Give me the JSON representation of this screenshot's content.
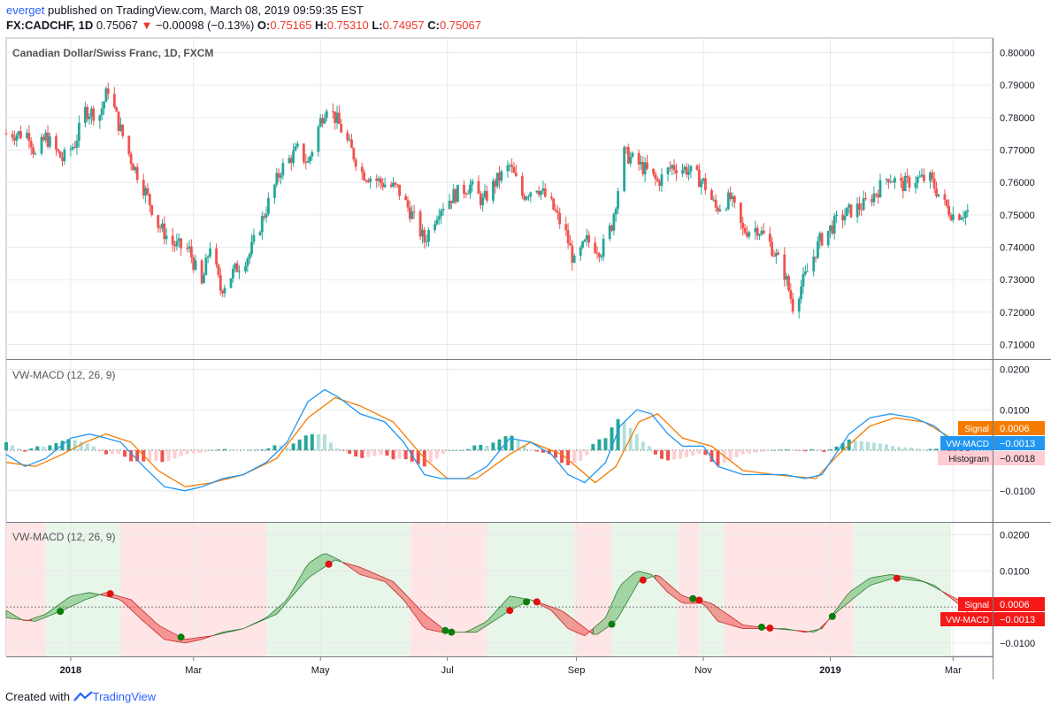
{
  "header": {
    "user": "everget",
    "published": "published on TradingView.com, March 08, 2019 09:59:35 EST",
    "symbol": "FX:CADCHF, 1D",
    "last": "0.75067",
    "change": "−0.00098 (−0.13%)",
    "o_label": "O:",
    "o": "0.75165",
    "h_label": "H:",
    "h": "0.75310",
    "l_label": "L:",
    "l": "0.74957",
    "c_label": "C:",
    "c": "0.75067"
  },
  "footer": {
    "created": "Created with",
    "brand": "TradingView"
  },
  "colors": {
    "up": "#26a69a",
    "down": "#ef5350",
    "macd": "#2196f3",
    "signal": "#f57c00",
    "hist_pos": "#26a69a",
    "hist_pos_fade": "#b2dfdb",
    "hist_neg": "#ef5350",
    "hist_neg_fade": "#ffcdd2",
    "bg_green": "#e8f5e9",
    "bg_red": "#ffe5e5",
    "grid": "#e6eaed",
    "axis": "#787b86"
  },
  "chart_data": [
    {
      "type": "candlestick",
      "title": "Canadian Dollar/Swiss Franc, 1D, FXCM",
      "yticks": [
        "0.80000",
        "0.79000",
        "0.78000",
        "0.77000",
        "0.76000",
        "0.75000",
        "0.74000",
        "0.73000",
        "0.72000",
        "0.71000"
      ],
      "ylim": [
        0.7055,
        0.8045
      ],
      "xticks": [
        "2018",
        "Mar",
        "May",
        "Jul",
        "Sep",
        "Nov",
        "2019",
        "Mar"
      ],
      "close_path": [
        [
          "2017-12-12",
          0.775
        ],
        [
          "2017-12-15",
          0.768
        ],
        [
          "2017-12-20",
          0.774
        ],
        [
          "2017-12-28",
          0.767
        ],
        [
          "2018-01-03",
          0.772
        ],
        [
          "2018-01-08",
          0.782
        ],
        [
          "2018-01-15",
          0.781
        ],
        [
          "2018-01-19",
          0.789
        ],
        [
          "2018-01-24",
          0.778
        ],
        [
          "2018-01-30",
          0.767
        ],
        [
          "2018-02-06",
          0.757
        ],
        [
          "2018-02-12",
          0.747
        ],
        [
          "2018-02-19",
          0.741
        ],
        [
          "2018-02-27",
          0.739
        ],
        [
          "2018-03-05",
          0.728
        ],
        [
          "2018-03-09",
          0.741
        ],
        [
          "2018-03-14",
          0.727
        ],
        [
          "2018-03-21",
          0.733
        ],
        [
          "2018-03-28",
          0.738
        ],
        [
          "2018-04-05",
          0.752
        ],
        [
          "2018-04-12",
          0.764
        ],
        [
          "2018-04-20",
          0.77
        ],
        [
          "2018-04-25",
          0.766
        ],
        [
          "2018-05-01",
          0.779
        ],
        [
          "2018-05-04",
          0.784
        ],
        [
          "2018-05-09",
          0.779
        ],
        [
          "2018-05-15",
          0.771
        ],
        [
          "2018-05-21",
          0.763
        ],
        [
          "2018-05-30",
          0.76
        ],
        [
          "2018-06-07",
          0.758
        ],
        [
          "2018-06-14",
          0.75
        ],
        [
          "2018-06-20",
          0.742
        ],
        [
          "2018-06-27",
          0.752
        ],
        [
          "2018-07-04",
          0.756
        ],
        [
          "2018-07-12",
          0.759
        ],
        [
          "2018-07-18",
          0.754
        ],
        [
          "2018-07-24",
          0.76
        ],
        [
          "2018-07-31",
          0.765
        ],
        [
          "2018-08-06",
          0.756
        ],
        [
          "2018-08-13",
          0.759
        ],
        [
          "2018-08-20",
          0.753
        ],
        [
          "2018-08-27",
          0.744
        ],
        [
          "2018-08-31",
          0.735
        ],
        [
          "2018-09-06",
          0.742
        ],
        [
          "2018-09-13",
          0.739
        ],
        [
          "2018-09-18",
          0.747
        ],
        [
          "2018-09-24",
          0.769
        ],
        [
          "2018-09-30",
          0.766
        ],
        [
          "2018-10-04",
          0.764
        ],
        [
          "2018-10-10",
          0.76
        ],
        [
          "2018-10-17",
          0.765
        ],
        [
          "2018-10-24",
          0.764
        ],
        [
          "2018-11-01",
          0.76
        ],
        [
          "2018-11-07",
          0.752
        ],
        [
          "2018-11-14",
          0.755
        ],
        [
          "2018-11-20",
          0.745
        ],
        [
          "2018-11-27",
          0.746
        ],
        [
          "2018-12-03",
          0.741
        ],
        [
          "2018-12-10",
          0.732
        ],
        [
          "2018-12-14",
          0.722
        ],
        [
          "2018-12-20",
          0.731
        ],
        [
          "2018-12-27",
          0.742
        ],
        [
          "2019-01-04",
          0.748
        ],
        [
          "2019-01-10",
          0.751
        ],
        [
          "2019-01-17",
          0.753
        ],
        [
          "2019-01-23",
          0.757
        ],
        [
          "2019-01-29",
          0.762
        ],
        [
          "2019-02-04",
          0.759
        ],
        [
          "2019-02-11",
          0.761
        ],
        [
          "2019-02-18",
          0.761
        ],
        [
          "2019-02-25",
          0.753
        ],
        [
          "2019-03-01",
          0.75
        ],
        [
          "2019-03-08",
          0.751
        ]
      ]
    },
    {
      "type": "line+histogram",
      "title": "VW-MACD (12, 26, 9)",
      "yticks": [
        "0.0200",
        "0.0100",
        "-0.0100"
      ],
      "ylim": [
        -0.0177,
        0.0223
      ],
      "labels": {
        "signal": "Signal",
        "signal_value": "0.0006",
        "macd": "VW-MACD",
        "macd_value": "−0.0013",
        "hist": "Histogram",
        "hist_value": "−0.0018"
      },
      "macd": [
        [
          "2017-12-01",
          -0.001
        ],
        [
          "2017-12-10",
          -0.004
        ],
        [
          "2017-12-20",
          -0.002
        ],
        [
          "2018-01-01",
          0.003
        ],
        [
          "2018-01-10",
          0.004
        ],
        [
          "2018-01-18",
          0.003
        ],
        [
          "2018-01-25",
          0.002
        ],
        [
          "2018-02-05",
          -0.004
        ],
        [
          "2018-02-15",
          -0.009
        ],
        [
          "2018-02-25",
          -0.01
        ],
        [
          "2018-03-05",
          -0.009
        ],
        [
          "2018-03-15",
          -0.007
        ],
        [
          "2018-03-25",
          -0.006
        ],
        [
          "2018-04-05",
          -0.003
        ],
        [
          "2018-04-15",
          0.002
        ],
        [
          "2018-04-25",
          0.012
        ],
        [
          "2018-05-03",
          0.015
        ],
        [
          "2018-05-10",
          0.013
        ],
        [
          "2018-05-20",
          0.009
        ],
        [
          "2018-06-01",
          0.007
        ],
        [
          "2018-06-10",
          0.002
        ],
        [
          "2018-06-20",
          -0.006
        ],
        [
          "2018-06-28",
          -0.007
        ],
        [
          "2018-07-10",
          -0.007
        ],
        [
          "2018-07-20",
          -0.004
        ],
        [
          "2018-07-31",
          0.003
        ],
        [
          "2018-08-10",
          0.002
        ],
        [
          "2018-08-20",
          -0.001
        ],
        [
          "2018-08-28",
          -0.006
        ],
        [
          "2018-09-05",
          -0.008
        ],
        [
          "2018-09-15",
          -0.003
        ],
        [
          "2018-09-22",
          0.006
        ],
        [
          "2018-09-30",
          0.01
        ],
        [
          "2018-10-07",
          0.009
        ],
        [
          "2018-10-15",
          0.004
        ],
        [
          "2018-10-22",
          0.001
        ],
        [
          "2018-11-01",
          0.001
        ],
        [
          "2018-11-08",
          -0.004
        ],
        [
          "2018-11-20",
          -0.006
        ],
        [
          "2018-12-01",
          -0.006
        ],
        [
          "2018-12-10",
          -0.006
        ],
        [
          "2018-12-20",
          -0.007
        ],
        [
          "2018-12-28",
          -0.006
        ],
        [
          "2019-01-10",
          0.004
        ],
        [
          "2019-01-20",
          0.008
        ],
        [
          "2019-01-30",
          0.009
        ],
        [
          "2019-02-10",
          0.008
        ],
        [
          "2019-02-20",
          0.006
        ],
        [
          "2019-03-01",
          0.002
        ],
        [
          "2019-03-08",
          -0.0013
        ]
      ],
      "signal": [
        [
          "2017-12-01",
          -0.003
        ],
        [
          "2017-12-15",
          -0.004
        ],
        [
          "2017-12-28",
          -0.001
        ],
        [
          "2018-01-08",
          0.002
        ],
        [
          "2018-01-18",
          0.004
        ],
        [
          "2018-01-30",
          0.002
        ],
        [
          "2018-02-12",
          -0.005
        ],
        [
          "2018-02-25",
          -0.009
        ],
        [
          "2018-03-10",
          -0.008
        ],
        [
          "2018-03-25",
          -0.006
        ],
        [
          "2018-04-10",
          -0.002
        ],
        [
          "2018-04-25",
          0.008
        ],
        [
          "2018-05-08",
          0.013
        ],
        [
          "2018-05-20",
          0.011
        ],
        [
          "2018-06-05",
          0.007
        ],
        [
          "2018-06-20",
          -0.002
        ],
        [
          "2018-07-01",
          -0.007
        ],
        [
          "2018-07-15",
          -0.007
        ],
        [
          "2018-07-31",
          -0.001
        ],
        [
          "2018-08-10",
          0.002
        ],
        [
          "2018-08-25",
          -0.001
        ],
        [
          "2018-09-10",
          -0.008
        ],
        [
          "2018-09-20",
          -0.004
        ],
        [
          "2018-10-01",
          0.007
        ],
        [
          "2018-10-10",
          0.009
        ],
        [
          "2018-10-22",
          0.003
        ],
        [
          "2018-11-05",
          0.001
        ],
        [
          "2018-11-20",
          -0.005
        ],
        [
          "2018-12-05",
          -0.006
        ],
        [
          "2018-12-25",
          -0.007
        ],
        [
          "2019-01-05",
          -0.001
        ],
        [
          "2019-01-20",
          0.006
        ],
        [
          "2019-02-01",
          0.008
        ],
        [
          "2019-02-15",
          0.007
        ],
        [
          "2019-03-08",
          0.0006
        ]
      ]
    },
    {
      "type": "area-band",
      "title": "VW-MACD (12, 26, 9)",
      "yticks": [
        "0.0200",
        "0.0100",
        "-0.0100"
      ],
      "ylim": [
        -0.0137,
        0.0233
      ],
      "labels": {
        "signal": "Signal",
        "signal_value": "0.0006",
        "macd": "VW-MACD",
        "macd_value": "−0.0013"
      },
      "regimes": [
        [
          "2017-12-01",
          "2017-12-20",
          "red"
        ],
        [
          "2017-12-20",
          "2018-01-25",
          "green"
        ],
        [
          "2018-01-25",
          "2018-04-05",
          "red"
        ],
        [
          "2018-04-05",
          "2018-06-13",
          "green"
        ],
        [
          "2018-06-13",
          "2018-07-20",
          "red"
        ],
        [
          "2018-07-20",
          "2018-08-31",
          "green"
        ],
        [
          "2018-08-31",
          "2018-09-18",
          "red"
        ],
        [
          "2018-09-18",
          "2018-10-20",
          "green"
        ],
        [
          "2018-10-20",
          "2018-10-30",
          "red"
        ],
        [
          "2018-10-30",
          "2018-11-11",
          "green"
        ],
        [
          "2018-11-11",
          "2019-01-12",
          "red"
        ],
        [
          "2019-01-12",
          "2019-02-28",
          "green"
        ],
        [
          "2019-02-28",
          "2019-03-08",
          "red"
        ]
      ],
      "cross_up": [
        "2017-12-27",
        "2018-02-23",
        "2018-06-30",
        "2018-07-03",
        "2018-08-08",
        "2018-09-18",
        "2018-10-27",
        "2018-11-29",
        "2019-01-02"
      ],
      "cross_down": [
        "2018-01-20",
        "2018-05-05",
        "2018-07-31",
        "2018-08-13",
        "2018-10-03",
        "2018-10-30",
        "2018-12-03",
        "2019-02-02"
      ]
    }
  ]
}
